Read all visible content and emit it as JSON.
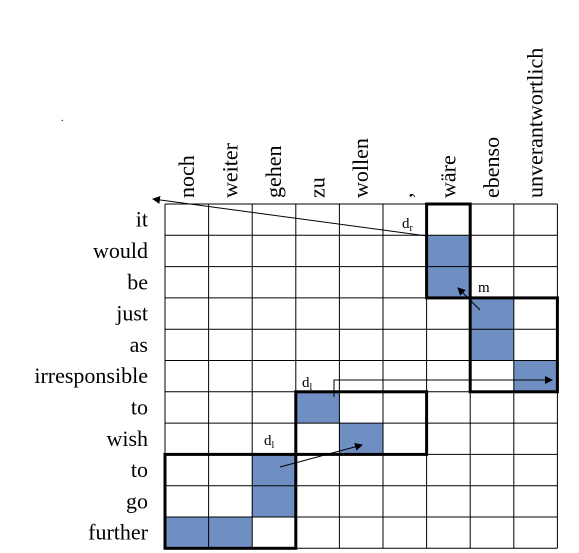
{
  "diagram": {
    "columns": [
      "noch",
      "weiter",
      "gehen",
      "zu",
      "wollen",
      ",",
      "wäre",
      "ebenso",
      "unverantwortlich"
    ],
    "rows": [
      "it",
      "would",
      "be",
      "just",
      "as",
      "irresponsible",
      "to",
      "wish",
      "to",
      "go",
      "further"
    ],
    "filled_cells": [
      {
        "row": 1,
        "col": 6
      },
      {
        "row": 2,
        "col": 6
      },
      {
        "row": 3,
        "col": 7
      },
      {
        "row": 4,
        "col": 7
      },
      {
        "row": 5,
        "col": 8
      },
      {
        "row": 6,
        "col": 3
      },
      {
        "row": 7,
        "col": 4
      },
      {
        "row": 8,
        "col": 2
      },
      {
        "row": 9,
        "col": 2
      },
      {
        "row": 10,
        "col": 0
      },
      {
        "row": 10,
        "col": 1
      }
    ],
    "blocks": [
      {
        "r0": 0,
        "c0": 6,
        "r1": 2,
        "c1": 6
      },
      {
        "r0": 3,
        "c0": 7,
        "r1": 5,
        "c1": 8
      },
      {
        "r0": 6,
        "c0": 3,
        "r1": 7,
        "c1": 5
      },
      {
        "r0": 8,
        "c0": 0,
        "r1": 10,
        "c1": 2
      }
    ],
    "labels": {
      "dr": {
        "main": "d",
        "sub": "r"
      },
      "m": "m",
      "dl_upper": {
        "main": "d",
        "sub": "l"
      },
      "dl_lower": {
        "main": "d",
        "sub": "l"
      }
    },
    "colors": {
      "fill": "#6f8fc2",
      "grid": "#000000"
    }
  }
}
